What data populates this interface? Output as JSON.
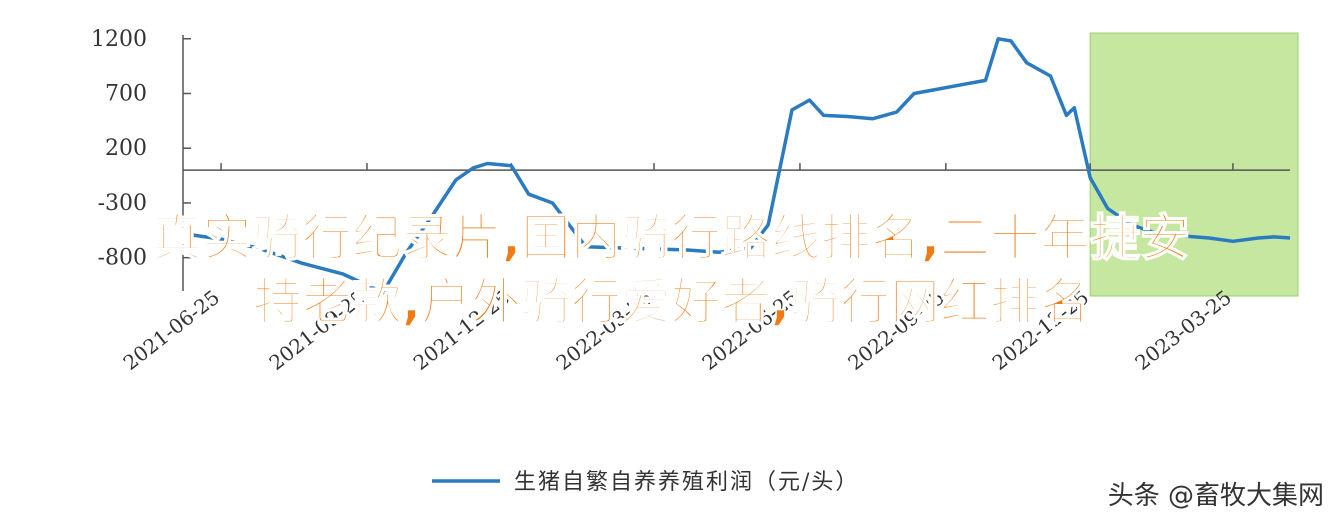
{
  "chart_data": {
    "type": "line",
    "series": [
      {
        "name": "生猪自繁自养养殖利润（元/头）",
        "color": "#2b7bc0",
        "points": [
          [
            "2021-06-01",
            -580
          ],
          [
            "2021-06-25",
            -630
          ],
          [
            "2021-07-20",
            -720
          ],
          [
            "2021-08-15",
            -850
          ],
          [
            "2021-09-10",
            -950
          ],
          [
            "2021-09-25",
            -1050
          ],
          [
            "2021-10-05",
            -1120
          ],
          [
            "2021-10-20",
            -750
          ],
          [
            "2021-11-05",
            -420
          ],
          [
            "2021-11-20",
            -90
          ],
          [
            "2021-12-01",
            20
          ],
          [
            "2021-12-10",
            60
          ],
          [
            "2021-12-25",
            40
          ],
          [
            "2022-01-05",
            -220
          ],
          [
            "2022-01-20",
            -300
          ],
          [
            "2022-02-10",
            -700
          ],
          [
            "2022-03-01",
            -710
          ],
          [
            "2022-03-25",
            -720
          ],
          [
            "2022-04-15",
            -730
          ],
          [
            "2022-05-05",
            -750
          ],
          [
            "2022-05-25",
            -710
          ],
          [
            "2022-06-05",
            -500
          ],
          [
            "2022-06-20",
            550
          ],
          [
            "2022-07-01",
            640
          ],
          [
            "2022-07-10",
            500
          ],
          [
            "2022-07-25",
            490
          ],
          [
            "2022-08-10",
            470
          ],
          [
            "2022-08-25",
            530
          ],
          [
            "2022-09-05",
            700
          ],
          [
            "2022-09-20",
            740
          ],
          [
            "2022-10-05",
            780
          ],
          [
            "2022-10-20",
            820
          ],
          [
            "2022-10-28",
            1200
          ],
          [
            "2022-11-05",
            1180
          ],
          [
            "2022-11-15",
            980
          ],
          [
            "2022-11-30",
            860
          ],
          [
            "2022-12-10",
            500
          ],
          [
            "2022-12-15",
            570
          ],
          [
            "2022-12-25",
            -70
          ],
          [
            "2023-01-05",
            -350
          ],
          [
            "2023-01-20",
            -500
          ],
          [
            "2023-02-05",
            -580
          ],
          [
            "2023-02-20",
            -600
          ],
          [
            "2023-03-10",
            -620
          ],
          [
            "2023-03-25",
            -650
          ],
          [
            "2023-04-10",
            -620
          ],
          [
            "2023-04-20",
            -610
          ],
          [
            "2023-04-30",
            -620
          ]
        ]
      }
    ],
    "x_ticks": [
      "2021-06-25",
      "2021-09-25",
      "2021-12-25",
      "2022-03-25",
      "2022-06-25",
      "2022-09-25",
      "2022-12-25",
      "2023-03-25"
    ],
    "y_ticks": [
      1200,
      700,
      200,
      -300,
      -800
    ],
    "y_tick_labels": [
      "1200",
      "700",
      "200",
      "-300",
      "-800"
    ],
    "ylim": [
      -1150,
      1280
    ],
    "x_range": [
      "2021-06-01",
      "2023-04-30"
    ],
    "highlight": {
      "from": "2022-12-25",
      "to": "2023-04-30",
      "color": "#c6e7a0"
    },
    "zero_line": 0,
    "legend_position": "bottom-center"
  },
  "overlay_text": {
    "line1": "真实骑行纪录片,国内骑行路线排名,二十年捷安",
    "line2": "特老款,户外骑行爱好者,骑行网红排名"
  },
  "watermark": "头条 @畜牧大集网",
  "colors": {
    "line": "#2b7bc0",
    "highlight": "#c6e7a0",
    "overlay_text": "#f07b12",
    "axis": "#555555"
  }
}
